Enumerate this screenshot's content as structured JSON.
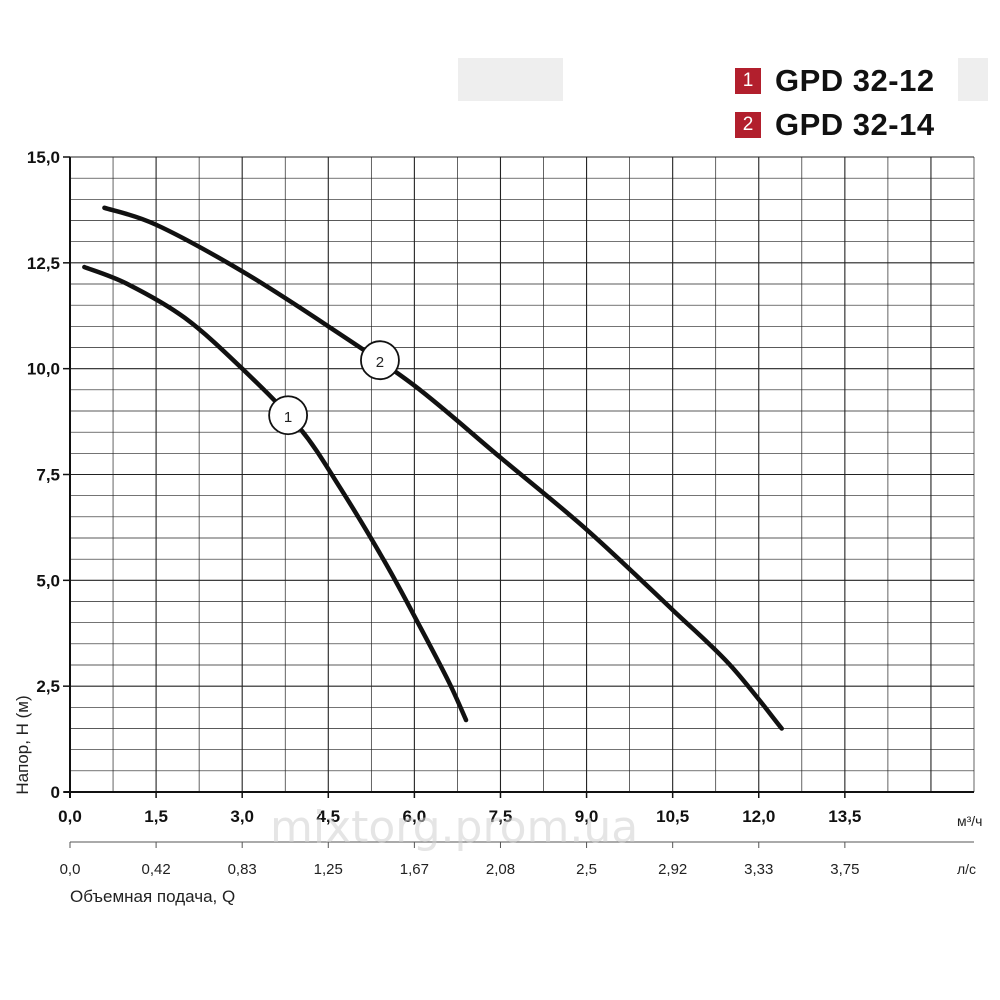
{
  "legend": {
    "items": [
      {
        "badge": "1",
        "label": "GPD 32-12"
      },
      {
        "badge": "2",
        "label": "GPD 32-14"
      }
    ]
  },
  "chart_data": {
    "type": "line",
    "ylabel": "Напор, Н (м)",
    "xlabel": "Объемная подача, Q",
    "x_unit": "м³/ч",
    "x2_unit": "л/с",
    "xlim": [
      0,
      15.75
    ],
    "ylim": [
      0,
      15
    ],
    "x_ticks": [
      "0,0",
      "1,5",
      "3,0",
      "4,5",
      "6,0",
      "7,5",
      "9,0",
      "10,5",
      "12,0",
      "13,5"
    ],
    "x_tick_values": [
      0,
      1.5,
      3.0,
      4.5,
      6.0,
      7.5,
      9.0,
      10.5,
      12.0,
      13.5
    ],
    "x2_ticks": [
      "0,0",
      "0,42",
      "0,83",
      "1,25",
      "1,67",
      "2,08",
      "2,5",
      "2,92",
      "3,33",
      "3,75"
    ],
    "y_ticks": [
      "0",
      "2,5",
      "5,0",
      "7,5",
      "10,0",
      "12,5",
      "15,0"
    ],
    "y_tick_values": [
      0,
      2.5,
      5.0,
      7.5,
      10.0,
      12.5,
      15.0
    ],
    "grid": true,
    "series": [
      {
        "name": "1",
        "x": [
          0.25,
          1.0,
          2.0,
          3.0,
          4.0,
          4.7,
          5.5,
          6.1,
          6.6,
          6.9
        ],
        "y": [
          12.4,
          12.0,
          11.2,
          10.0,
          8.6,
          7.2,
          5.4,
          3.9,
          2.6,
          1.7
        ],
        "label_at": {
          "x": 3.8,
          "y": 8.9
        }
      },
      {
        "name": "2",
        "x": [
          0.6,
          1.5,
          3.0,
          4.5,
          6.0,
          7.5,
          9.0,
          10.5,
          11.5,
          12.4
        ],
        "y": [
          13.8,
          13.4,
          12.3,
          11.0,
          9.6,
          7.9,
          6.2,
          4.3,
          3.0,
          1.5
        ],
        "label_at": {
          "x": 5.4,
          "y": 10.2
        }
      }
    ],
    "line_color": "#111111"
  },
  "watermark": "mixtorg.prom.ua"
}
